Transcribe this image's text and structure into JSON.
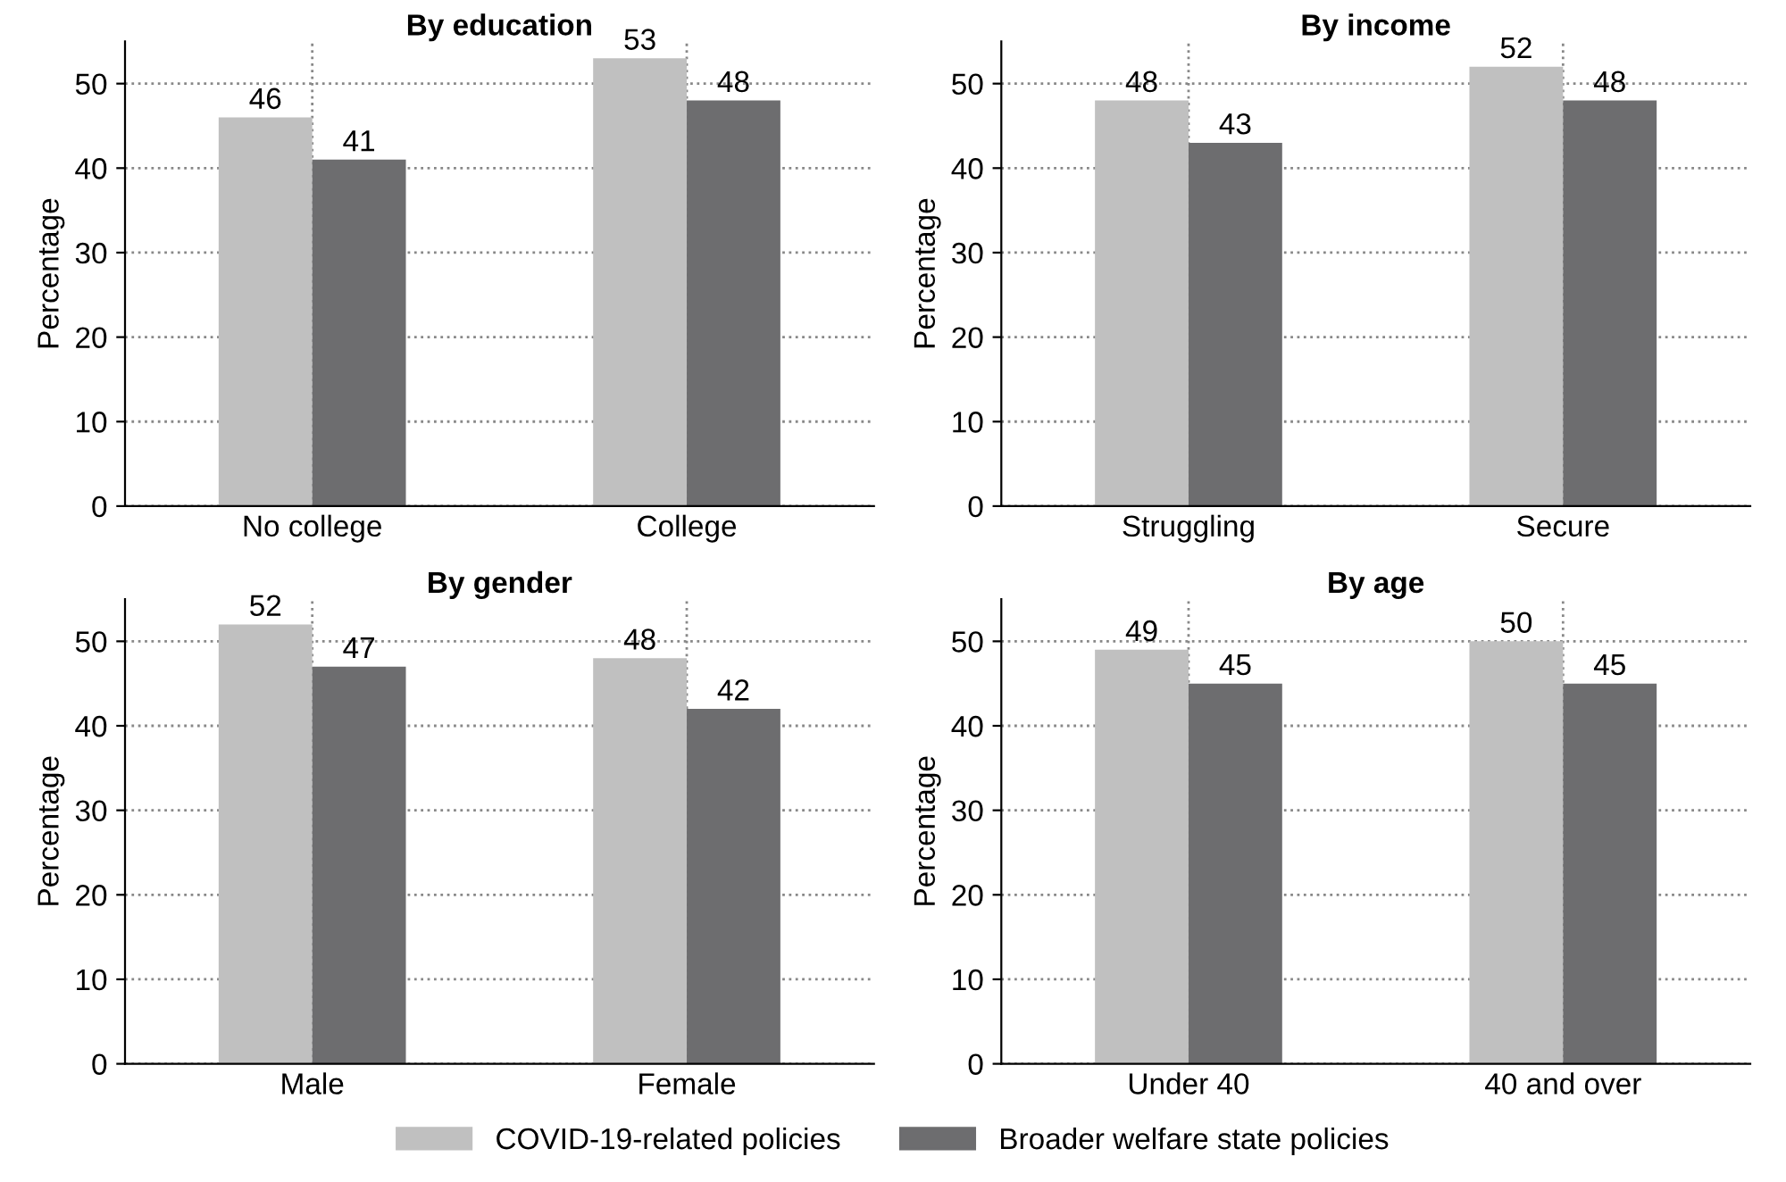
{
  "chart_data": [
    {
      "type": "bar",
      "title": "By education",
      "ylabel": "Percentage",
      "categories": [
        "No college",
        "College"
      ],
      "ylim": [
        0,
        55
      ],
      "yticks": [
        0,
        10,
        20,
        30,
        40,
        50
      ],
      "grid": true,
      "data_labels": true,
      "legend": "bottom",
      "series": [
        {
          "name": "COVID-19-related policies",
          "color": "#c0c0c0",
          "values": [
            46,
            53
          ]
        },
        {
          "name": "Broader welfare state policies",
          "color": "#6d6d6f",
          "values": [
            41,
            48
          ]
        }
      ]
    },
    {
      "type": "bar",
      "title": "By income",
      "ylabel": "Percentage",
      "categories": [
        "Struggling",
        "Secure"
      ],
      "ylim": [
        0,
        55
      ],
      "yticks": [
        0,
        10,
        20,
        30,
        40,
        50
      ],
      "grid": true,
      "data_labels": true,
      "series": [
        {
          "color": "#c0c0c0",
          "values": [
            48,
            52
          ]
        },
        {
          "color": "#6d6d6f",
          "values": [
            43,
            48
          ]
        }
      ]
    },
    {
      "type": "bar",
      "title": "By gender",
      "ylabel": "Percentage",
      "categories": [
        "Male",
        "Female"
      ],
      "ylim": [
        0,
        55
      ],
      "yticks": [
        0,
        10,
        20,
        30,
        40,
        50
      ],
      "grid": true,
      "data_labels": true,
      "series": [
        {
          "color": "#c0c0c0",
          "values": [
            52,
            48
          ]
        },
        {
          "color": "#6d6d6f",
          "values": [
            47,
            42
          ]
        }
      ]
    },
    {
      "type": "bar",
      "title": "By age",
      "ylabel": "Percentage",
      "categories": [
        "Under 40",
        "40 and over"
      ],
      "ylim": [
        0,
        55
      ],
      "yticks": [
        0,
        10,
        20,
        30,
        40,
        50
      ],
      "grid": true,
      "data_labels": true,
      "series": [
        {
          "color": "#c0c0c0",
          "values": [
            49,
            50
          ]
        },
        {
          "color": "#6d6d6f",
          "values": [
            45,
            45
          ]
        }
      ]
    }
  ]
}
